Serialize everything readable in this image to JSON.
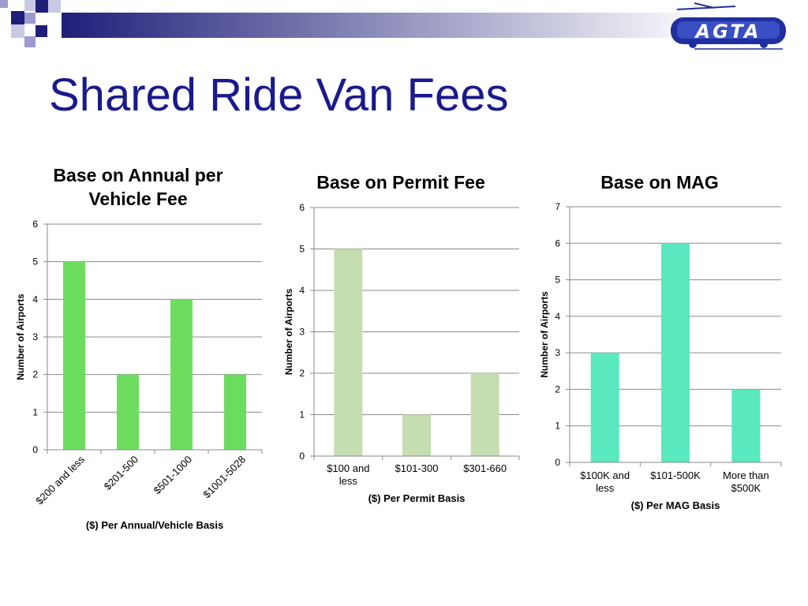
{
  "slide": {
    "title": "Shared Ride Van Fees",
    "logo_text": "AGTA"
  },
  "colors": {
    "title_blue": "#1a1a8c",
    "deco_navy": "#1f1f7a",
    "deco_light": "#9c9cd0",
    "logo_blue": "#1f2f9e",
    "chart1_bar": "#6ddd5f",
    "chart2_bar": "#c5ddb1",
    "chart3_bar": "#5ae8bf",
    "grid": "#8a8a8a"
  },
  "chart_data": [
    {
      "type": "bar",
      "title": "Base on Annual per Vehicle Fee",
      "categories": [
        "$200 and less",
        "$201-500",
        "$501-1000",
        "$1001-5028"
      ],
      "values": [
        5,
        2,
        4,
        2
      ],
      "xlabel": "($) Per Annual/Vehicle Basis",
      "ylabel": "Number of Airports",
      "ylim": [
        0,
        6
      ],
      "yticks": [
        0,
        1,
        2,
        3,
        4,
        5,
        6
      ],
      "grid": true,
      "color": "#6ddd5f",
      "category_label_rotation": "diagonal"
    },
    {
      "type": "bar",
      "title": "Base on Permit Fee",
      "categories": [
        "$100 and less",
        "$101-300",
        "$301-660"
      ],
      "values": [
        5,
        1,
        2
      ],
      "xlabel": "($) Per Permit Basis",
      "ylabel": "Number of Airports",
      "ylim": [
        0,
        6
      ],
      "yticks": [
        0,
        1,
        2,
        3,
        4,
        5,
        6
      ],
      "grid": true,
      "color": "#c5ddb1"
    },
    {
      "type": "bar",
      "title": "Base on MAG",
      "categories": [
        "$100K and less",
        "$101-500K",
        "More than $500K"
      ],
      "values": [
        3,
        6,
        2
      ],
      "xlabel": "($) Per MAG Basis",
      "ylabel": "Number of Airports",
      "ylim": [
        0,
        7
      ],
      "yticks": [
        0,
        1,
        2,
        3,
        4,
        5,
        6,
        7
      ],
      "grid": true,
      "color": "#5ae8bf"
    }
  ]
}
